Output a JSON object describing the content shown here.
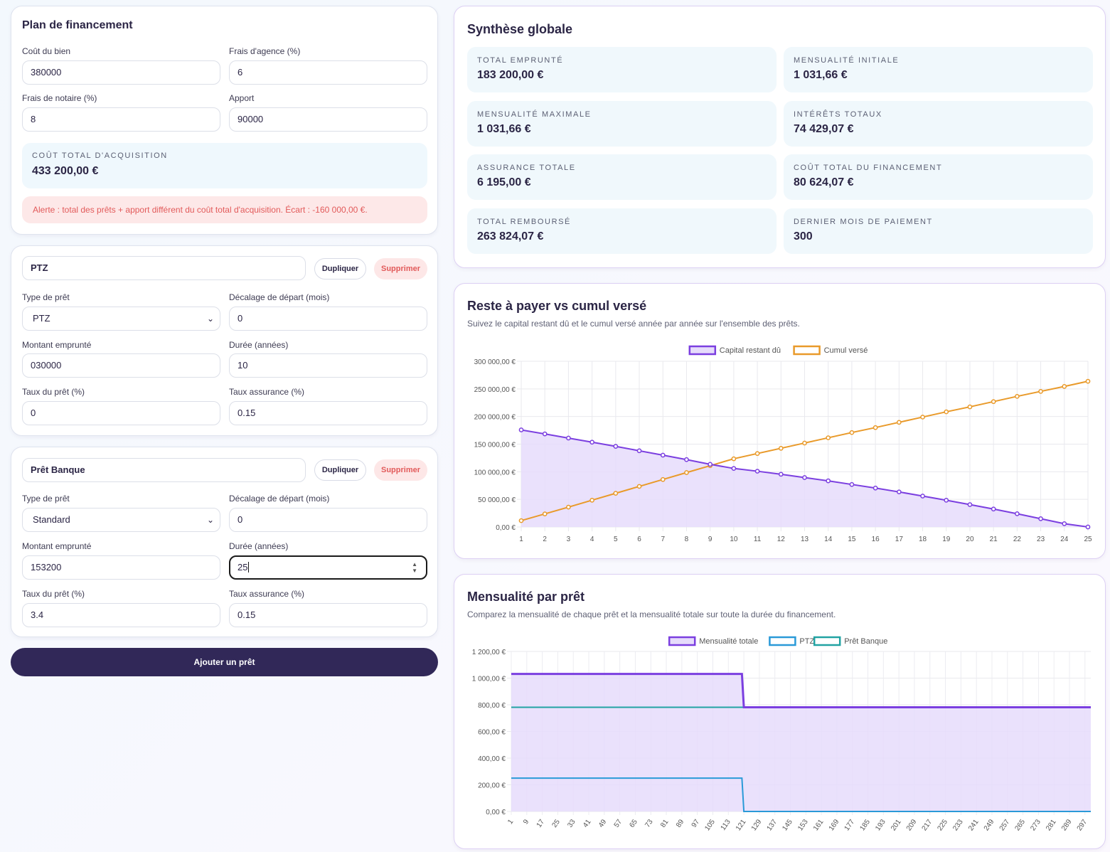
{
  "plan": {
    "title": "Plan de financement",
    "cout_bien_label": "Coût du bien",
    "cout_bien_value": "380000",
    "frais_agence_label": "Frais d'agence (%)",
    "frais_agence_value": "6",
    "frais_notaire_label": "Frais de notaire (%)",
    "frais_notaire_value": "8",
    "apport_label": "Apport",
    "apport_value": "90000",
    "total_label": "COÛT TOTAL D'ACQUISITION",
    "total_value": "433 200,00 €",
    "alert": "Alerte : total des prêts + apport différent du coût total d'acquisition. Écart : -160 000,00 €."
  },
  "loans": [
    {
      "name": "PTZ",
      "dup_label": "Dupliquer",
      "del_label": "Supprimer",
      "type_label": "Type de prêt",
      "type_value": "PTZ",
      "offset_label": "Décalage de départ (mois)",
      "offset_value": "0",
      "amount_label": "Montant emprunté",
      "amount_value": "030000",
      "duration_label": "Durée (années)",
      "duration_value": "10",
      "rate_label": "Taux du prêt (%)",
      "rate_value": "0",
      "ins_label": "Taux assurance (%)",
      "ins_value": "0.15"
    },
    {
      "name": "Prêt Banque",
      "dup_label": "Dupliquer",
      "del_label": "Supprimer",
      "type_label": "Type de prêt",
      "type_value": "Standard",
      "offset_label": "Décalage de départ (mois)",
      "offset_value": "0",
      "amount_label": "Montant emprunté",
      "amount_value": "153200",
      "duration_label": "Durée (années)",
      "duration_value": "25",
      "rate_label": "Taux du prêt (%)",
      "rate_value": "3.4",
      "ins_label": "Taux assurance (%)",
      "ins_value": "0.15"
    }
  ],
  "add_loan_label": "Ajouter un prêt",
  "synthese": {
    "title": "Synthèse globale",
    "stats": [
      {
        "label": "TOTAL EMPRUNTÉ",
        "value": "183 200,00 €"
      },
      {
        "label": "MENSUALITÉ INITIALE",
        "value": "1 031,66 €"
      },
      {
        "label": "MENSUALITÉ MAXIMALE",
        "value": "1 031,66 €"
      },
      {
        "label": "INTÉRÊTS TOTAUX",
        "value": "74 429,07 €"
      },
      {
        "label": "ASSURANCE TOTALE",
        "value": "6 195,00 €"
      },
      {
        "label": "COÛT TOTAL DU FINANCEMENT",
        "value": "80 624,07 €"
      },
      {
        "label": "TOTAL REMBOURSÉ",
        "value": "263 824,07 €"
      },
      {
        "label": "DERNIER MOIS DE PAIEMENT",
        "value": "300"
      }
    ]
  },
  "chart1": {
    "title": "Reste à payer vs cumul versé",
    "subtitle": "Suivez le capital restant dû et le cumul versé année par année sur l'ensemble des prêts."
  },
  "chart2": {
    "title": "Mensualité par prêt",
    "subtitle": "Comparez la mensualité de chaque prêt et la mensualité totale sur toute la durée du financement."
  },
  "colors": {
    "purple": "#7b3fe0",
    "purple_fill": "#e6dcfb",
    "orange": "#e99a2a",
    "blue": "#2a9ad8",
    "teal": "#22a3a3",
    "navy": "#312858"
  },
  "chart_data": [
    {
      "type": "line",
      "title": "",
      "x": [
        1,
        2,
        3,
        4,
        5,
        6,
        7,
        8,
        9,
        10,
        11,
        12,
        13,
        14,
        15,
        16,
        17,
        18,
        19,
        20,
        21,
        22,
        23,
        24,
        25
      ],
      "series": [
        {
          "name": "Capital restant dû",
          "fill": true,
          "values": [
            175750,
            168500,
            161000,
            153500,
            146000,
            138000,
            130000,
            122000,
            113500,
            106000,
            101000,
            95500,
            89500,
            83500,
            77000,
            70500,
            63500,
            56000,
            48500,
            40500,
            32500,
            24000,
            15000,
            6000,
            0
          ]
        },
        {
          "name": "Cumul versé",
          "values": [
            11500,
            23700,
            36000,
            48500,
            61000,
            73500,
            86000,
            98500,
            111000,
            123500,
            133000,
            142500,
            152000,
            161500,
            171000,
            180000,
            189500,
            199000,
            208500,
            217500,
            227000,
            236500,
            245500,
            254500,
            263824
          ]
        }
      ],
      "ylim": [
        0,
        300000
      ],
      "yticks": [
        "0,00 €",
        "50 000,00 €",
        "100 000,00 €",
        "150 000,00 €",
        "200 000,00 €",
        "250 000,00 €",
        "300 000,00 €"
      ],
      "legend": "top"
    },
    {
      "type": "line",
      "title": "",
      "x_ticks": [
        1,
        9,
        17,
        25,
        33,
        41,
        49,
        57,
        65,
        73,
        81,
        89,
        97,
        105,
        113,
        121,
        129,
        137,
        145,
        153,
        161,
        169,
        177,
        185,
        193,
        201,
        209,
        217,
        225,
        233,
        241,
        249,
        257,
        265,
        273,
        281,
        289,
        297
      ],
      "x_range": [
        1,
        300
      ],
      "series": [
        {
          "name": "Mensualité totale",
          "fill": true,
          "segments": [
            {
              "from": 1,
              "to": 120,
              "value": 1031.66
            },
            {
              "from": 121,
              "to": 300,
              "value": 781.66
            }
          ]
        },
        {
          "name": "PTZ",
          "segments": [
            {
              "from": 1,
              "to": 120,
              "value": 250
            },
            {
              "from": 121,
              "to": 300,
              "value": 0
            }
          ]
        },
        {
          "name": "Prêt Banque",
          "segments": [
            {
              "from": 1,
              "to": 300,
              "value": 781.66
            }
          ]
        }
      ],
      "ylim": [
        0,
        1200
      ],
      "yticks": [
        "0,00 €",
        "200,00 €",
        "400,00 €",
        "600,00 €",
        "800,00 €",
        "1 000,00 €",
        "1 200,00 €"
      ],
      "legend": "top"
    }
  ]
}
